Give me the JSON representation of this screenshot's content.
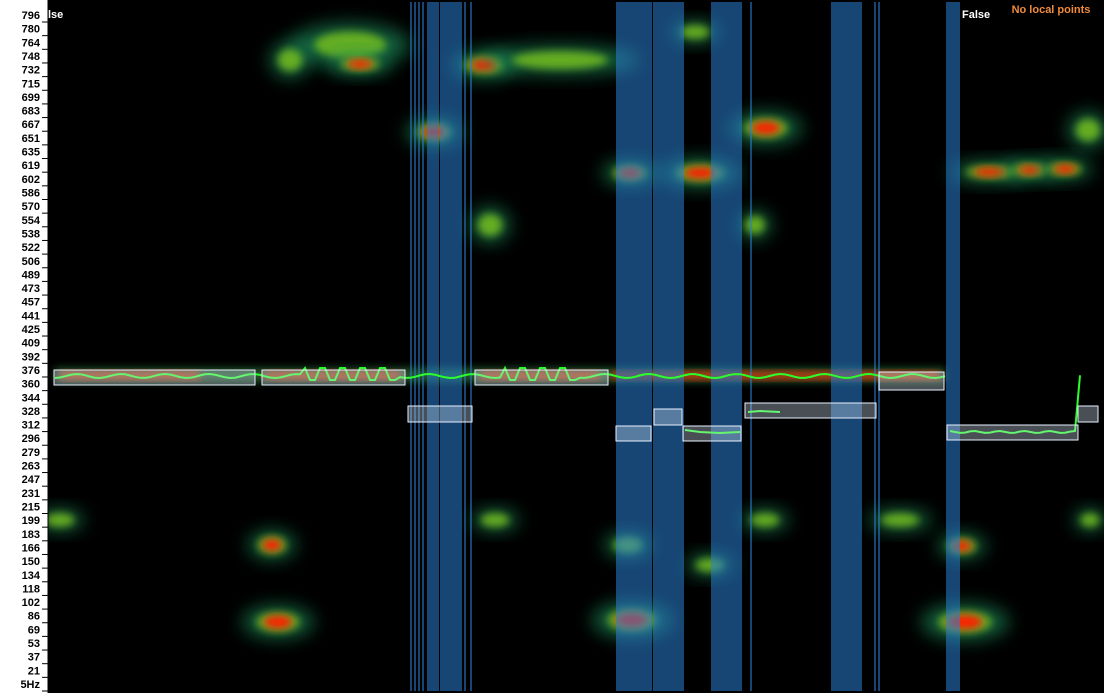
{
  "axis": {
    "labels": [
      "796",
      "780",
      "764",
      "748",
      "732",
      "715",
      "699",
      "683",
      "667",
      "651",
      "635",
      "619",
      "602",
      "586",
      "570",
      "554",
      "538",
      "522",
      "506",
      "489",
      "473",
      "457",
      "441",
      "425",
      "409",
      "392",
      "376",
      "360",
      "344",
      "328",
      "312",
      "296",
      "279",
      "263",
      "247",
      "231",
      "215",
      "199",
      "183",
      "166",
      "150",
      "134",
      "118",
      "102",
      "86",
      "69",
      "53",
      "37",
      "21",
      "5Hz"
    ]
  },
  "overlays": {
    "left_flag": "lse",
    "right_flag": "False",
    "status": "No local points"
  }
}
